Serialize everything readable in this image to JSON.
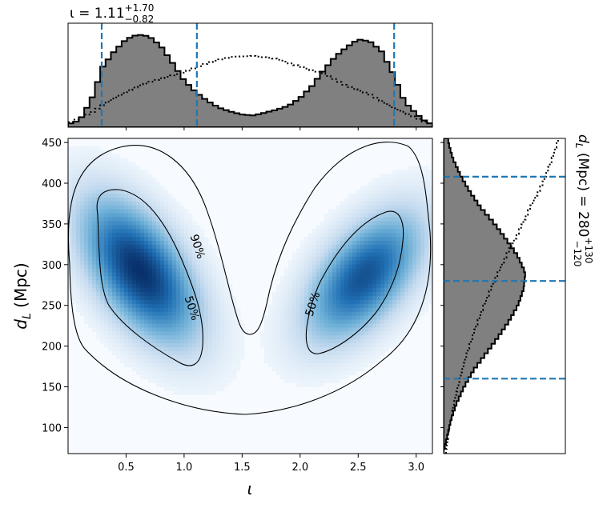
{
  "chart_data": [
    {
      "panel": "top-marginal",
      "type": "histogram",
      "title_lhs": "ι = 1.11",
      "title_sup": "+1.70",
      "title_sub": "−0.82",
      "xlim": [
        0.0,
        3.14
      ],
      "median": 1.11,
      "quantile_lines": [
        0.29,
        1.11,
        2.81
      ],
      "quantile_color": "#1f77b4",
      "fill_color": "#808080",
      "posterior_density": [
        [
          0.0,
          0.03
        ],
        [
          0.1,
          0.07
        ],
        [
          0.2,
          0.28
        ],
        [
          0.3,
          0.62
        ],
        [
          0.4,
          0.78
        ],
        [
          0.5,
          0.9
        ],
        [
          0.6,
          0.95
        ],
        [
          0.7,
          0.93
        ],
        [
          0.8,
          0.83
        ],
        [
          0.9,
          0.66
        ],
        [
          1.0,
          0.48
        ],
        [
          1.1,
          0.36
        ],
        [
          1.2,
          0.27
        ],
        [
          1.3,
          0.2
        ],
        [
          1.4,
          0.16
        ],
        [
          1.5,
          0.13
        ],
        [
          1.6,
          0.12
        ],
        [
          1.7,
          0.15
        ],
        [
          1.8,
          0.18
        ],
        [
          1.9,
          0.22
        ],
        [
          2.0,
          0.3
        ],
        [
          2.1,
          0.42
        ],
        [
          2.2,
          0.58
        ],
        [
          2.3,
          0.72
        ],
        [
          2.4,
          0.82
        ],
        [
          2.5,
          0.9
        ],
        [
          2.6,
          0.88
        ],
        [
          2.7,
          0.78
        ],
        [
          2.8,
          0.55
        ],
        [
          2.9,
          0.26
        ],
        [
          3.0,
          0.14
        ],
        [
          3.1,
          0.04
        ]
      ],
      "prior_density": [
        [
          0.0,
          0.04
        ],
        [
          0.2,
          0.15
        ],
        [
          0.4,
          0.3
        ],
        [
          0.6,
          0.42
        ],
        [
          0.8,
          0.5
        ],
        [
          1.0,
          0.56
        ],
        [
          1.2,
          0.66
        ],
        [
          1.4,
          0.72
        ],
        [
          1.6,
          0.73
        ],
        [
          1.8,
          0.7
        ],
        [
          2.0,
          0.62
        ],
        [
          2.2,
          0.55
        ],
        [
          2.4,
          0.42
        ],
        [
          2.6,
          0.34
        ],
        [
          2.8,
          0.2
        ],
        [
          3.0,
          0.1
        ],
        [
          3.1,
          0.04
        ]
      ]
    },
    {
      "panel": "joint",
      "type": "heatmap",
      "xlabel": "ι",
      "ylabel_main": "d",
      "ylabel_sub": "L",
      "ylabel_unit": " (Mpc)",
      "xlim": [
        0.0,
        3.14
      ],
      "ylim": [
        68,
        455
      ],
      "xticks": [
        "0.5",
        "1.0",
        "1.5",
        "2.0",
        "2.5",
        "3.0"
      ],
      "yticks": [
        "100",
        "150",
        "200",
        "250",
        "300",
        "350",
        "400",
        "450"
      ],
      "colormap": "Blues",
      "modes": [
        {
          "x": 0.62,
          "y": 292,
          "weight": 1.0
        },
        {
          "x": 2.55,
          "y": 285,
          "weight": 0.85
        }
      ],
      "contours": [
        "50%",
        "90%"
      ]
    },
    {
      "panel": "right-marginal",
      "type": "histogram",
      "orientation": "horizontal",
      "ylim": [
        68,
        455
      ],
      "median": 280,
      "quantile_lines": [
        160,
        280,
        408
      ],
      "label_prefix": "d",
      "label_sub": "L",
      "label_mid": " (Mpc) = 280",
      "label_sup": "+130",
      "label_low": "−120",
      "posterior_density": [
        [
          70,
          0.0
        ],
        [
          90,
          0.04
        ],
        [
          110,
          0.08
        ],
        [
          130,
          0.14
        ],
        [
          150,
          0.22
        ],
        [
          170,
          0.32
        ],
        [
          190,
          0.45
        ],
        [
          210,
          0.58
        ],
        [
          230,
          0.7
        ],
        [
          250,
          0.8
        ],
        [
          270,
          0.86
        ],
        [
          290,
          0.88
        ],
        [
          310,
          0.8
        ],
        [
          330,
          0.68
        ],
        [
          350,
          0.55
        ],
        [
          370,
          0.4
        ],
        [
          390,
          0.28
        ],
        [
          410,
          0.18
        ],
        [
          430,
          0.1
        ],
        [
          450,
          0.05
        ]
      ],
      "prior_density": [
        [
          70,
          0.02
        ],
        [
          100,
          0.05
        ],
        [
          130,
          0.09
        ],
        [
          160,
          0.14
        ],
        [
          190,
          0.2
        ],
        [
          220,
          0.27
        ],
        [
          250,
          0.35
        ],
        [
          280,
          0.44
        ],
        [
          310,
          0.54
        ],
        [
          340,
          0.65
        ],
        [
          370,
          0.75
        ],
        [
          400,
          0.86
        ],
        [
          430,
          0.94
        ],
        [
          455,
          1.0
        ]
      ]
    }
  ]
}
